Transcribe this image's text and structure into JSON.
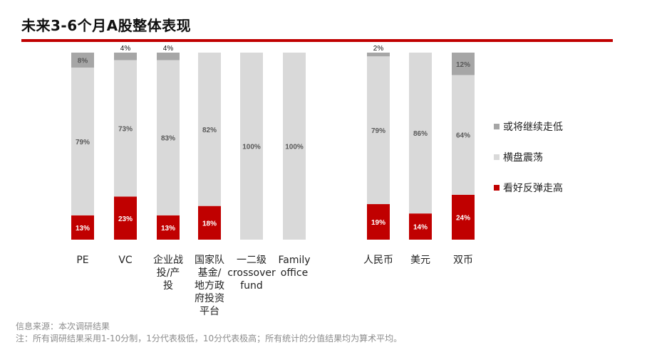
{
  "title": "未来3-6个月A股整体表现",
  "footer": {
    "source": "信息来源：本次调研结果",
    "note": "注：所有调研结果采用1-10分制，1分代表极低，10分代表极高；所有统计的分值结果均为算术平均。"
  },
  "colors": {
    "accent": "#c00000",
    "bearish": "#a6a6a6",
    "neutral": "#d9d9d9",
    "bullish": "#c00000"
  },
  "chart_data": {
    "type": "bar",
    "stacked": true,
    "percent_stacked": true,
    "title": "未来3-6个月A股整体表现",
    "categories": [
      "PE",
      "VC",
      "企业战\n投/产\n投",
      "国家队\n基金/\n地方政\n府投资\n平台",
      "一二级\ncrossover\nfund",
      "Family\noffice",
      "人民币",
      "美元",
      "双币"
    ],
    "groups": [
      [
        0,
        1,
        2,
        3,
        4,
        5
      ],
      [
        6,
        7,
        8
      ]
    ],
    "series": [
      {
        "name": "看好反弹走高",
        "color": "#c00000",
        "values": [
          13,
          23,
          13,
          18,
          0,
          0,
          19,
          14,
          24
        ]
      },
      {
        "name": "横盘震荡",
        "color": "#d9d9d9",
        "values": [
          79,
          73,
          83,
          82,
          100,
          100,
          79,
          86,
          64
        ]
      },
      {
        "name": "或将继续走低",
        "color": "#a6a6a6",
        "values": [
          8,
          4,
          4,
          0,
          0,
          0,
          2,
          0,
          12
        ]
      }
    ],
    "legend_order": [
      "或将继续走低",
      "横盘震荡",
      "看好反弹走高"
    ],
    "legend_position": "right",
    "ylim": [
      0,
      100
    ],
    "unit": "%"
  }
}
